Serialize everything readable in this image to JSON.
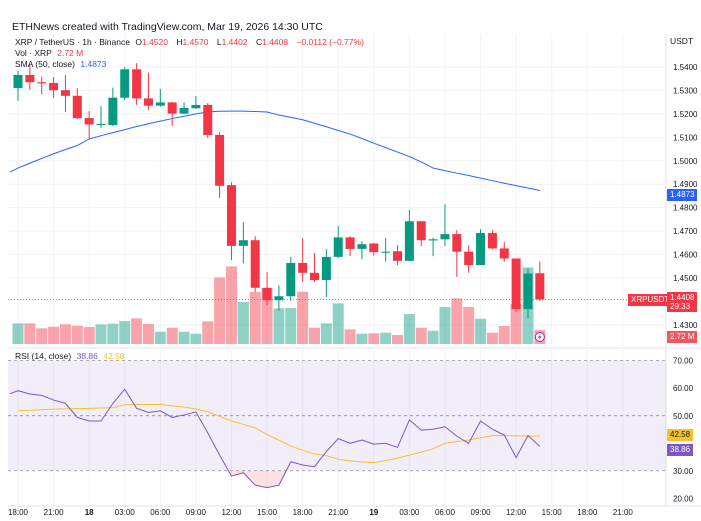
{
  "credit": "ETHNews created with TradingView.com, Mar 19, 2026 14:30 UTC",
  "legend": {
    "symbol": "XRP / TetherUS · 1h · Binance",
    "o_label": "O",
    "o": "1.4520",
    "h_label": "H",
    "h": "1.4570",
    "l_label": "L",
    "l": "1.4402",
    "c_label": "C",
    "c": "1.4408",
    "change": "−0.0112 (−0.77%)",
    "vol_label": "Vol · XRP",
    "vol": "2.72 M",
    "sma_label": "SMA (50, close)",
    "sma": "1.4873",
    "rsi_label": "RSI (14, close)",
    "rsi": "38.86",
    "rsi_ma": "42.58"
  },
  "axis": {
    "currency": "USDT",
    "price_tag": "1.4408",
    "countdown": "29:33",
    "symbol_tag": "XRPUSDT",
    "sma_tag": "1.4873",
    "vol_tag": "2.72 M",
    "rsi_tag": "38.86",
    "rsi_ma_tag": "42.58"
  },
  "colors": {
    "up": "#089981",
    "down": "#f23645",
    "sma": "#2962ff",
    "rsi": "#7e57c2",
    "rsi_ma": "#f7c12b"
  },
  "chart_data": {
    "type": "candlestick",
    "title": "XRP / TetherUS · 1h · Binance",
    "price_ticks": [
      "1.5400",
      "1.5300",
      "1.5200",
      "1.5100",
      "1.5000",
      "1.4900",
      "1.4800",
      "1.4700",
      "1.4600",
      "1.4500",
      "1.4300"
    ],
    "price_range": [
      1.4265,
      1.5535
    ],
    "time_labels": [
      "18:00",
      "21:00",
      "18",
      "03:00",
      "06:00",
      "09:00",
      "12:00",
      "15:00",
      "18:00",
      "21:00",
      "19",
      "03:00",
      "06:00",
      "09:00",
      "12:00",
      "15:00",
      "18:00",
      "21:00"
    ],
    "candles": [
      [
        1.531,
        1.5383,
        1.5255,
        1.5366
      ],
      [
        1.5366,
        1.5409,
        1.5302,
        1.5335
      ],
      [
        1.5335,
        1.5359,
        1.5283,
        1.533
      ],
      [
        1.5332,
        1.5357,
        1.5269,
        1.5301
      ],
      [
        1.5301,
        1.5366,
        1.5208,
        1.5277
      ],
      [
        1.5277,
        1.531,
        1.5178,
        1.5182
      ],
      [
        1.5182,
        1.5212,
        1.5093,
        1.5155
      ],
      [
        1.5155,
        1.5233,
        1.5141,
        1.5157
      ],
      [
        1.5152,
        1.5312,
        1.5147,
        1.5269
      ],
      [
        1.5269,
        1.5399,
        1.5259,
        1.539
      ],
      [
        1.539,
        1.5416,
        1.5238,
        1.5266
      ],
      [
        1.5266,
        1.5376,
        1.5216,
        1.5235
      ],
      [
        1.5235,
        1.5306,
        1.523,
        1.5249
      ],
      [
        1.5249,
        1.5251,
        1.5148,
        1.5201
      ],
      [
        1.5201,
        1.5249,
        1.5199,
        1.5225
      ],
      [
        1.5224,
        1.5276,
        1.5221,
        1.5238
      ],
      [
        1.5238,
        1.5246,
        1.5097,
        1.511
      ],
      [
        1.511,
        1.5122,
        1.4841,
        1.4893
      ],
      [
        1.4896,
        1.4908,
        1.4576,
        1.4637
      ],
      [
        1.4637,
        1.4739,
        1.4562,
        1.4661
      ],
      [
        1.4661,
        1.4678,
        1.4439,
        1.4458
      ],
      [
        1.4458,
        1.4525,
        1.4384,
        1.4405
      ],
      [
        1.4405,
        1.4469,
        1.436,
        1.4422
      ],
      [
        1.4422,
        1.459,
        1.4402,
        1.4564
      ],
      [
        1.4564,
        1.467,
        1.4483,
        1.4522
      ],
      [
        1.4522,
        1.4606,
        1.4483,
        1.4491
      ],
      [
        1.4491,
        1.4623,
        1.4419,
        1.459
      ],
      [
        1.459,
        1.4721,
        1.4585,
        1.4673
      ],
      [
        1.4673,
        1.4678,
        1.4593,
        1.4624
      ],
      [
        1.4624,
        1.4657,
        1.4579,
        1.4644
      ],
      [
        1.4647,
        1.465,
        1.4596,
        1.461
      ],
      [
        1.461,
        1.4671,
        1.4569,
        1.4612
      ],
      [
        1.4614,
        1.464,
        1.4555,
        1.4573
      ],
      [
        1.4573,
        1.479,
        1.4573,
        1.4742
      ],
      [
        1.4742,
        1.4742,
        1.4636,
        1.4661
      ],
      [
        1.466,
        1.4672,
        1.4593,
        1.4665
      ],
      [
        1.4665,
        1.4815,
        1.4636,
        1.4687
      ],
      [
        1.4687,
        1.4704,
        1.4505,
        1.4612
      ],
      [
        1.4612,
        1.464,
        1.4522,
        1.4555
      ],
      [
        1.4555,
        1.4708,
        1.4555,
        1.4692
      ],
      [
        1.4692,
        1.4704,
        1.4622,
        1.4626
      ],
      [
        1.4626,
        1.4655,
        1.4569,
        1.4583
      ],
      [
        1.4583,
        1.4583,
        1.4355,
        1.4367
      ],
      [
        1.4367,
        1.454,
        1.4327,
        1.4519
      ],
      [
        1.452,
        1.457,
        1.4402,
        1.4408
      ]
    ],
    "volume_m": [
      4.02,
      4.02,
      3.05,
      3.36,
      3.83,
      3.56,
      3.3,
      3.83,
      3.94,
      4.47,
      4.99,
      3.89,
      2.39,
      3.17,
      2.39,
      2.0,
      4.41,
      12.96,
      15.1,
      8.16,
      10.1,
      10.88,
      6.94,
      7.0,
      10.16,
      3.17,
      4.02,
      7.91,
      2.86,
      2.0,
      2.08,
      2.2,
      1.75,
      5.83,
      3.17,
      2.58,
      7.19,
      8.88,
      7.19,
      4.92,
      2.2,
      3.5,
      7.77,
      14.9,
      2.72
    ],
    "sma50": [
      1.4969,
      1.499,
      1.501,
      1.503,
      1.5048,
      1.5065,
      1.5093,
      1.5107,
      1.512,
      1.5133,
      1.5146,
      1.5158,
      1.5169,
      1.518,
      1.519,
      1.52,
      1.5208,
      1.5211,
      1.5212,
      1.5212,
      1.521,
      1.5208,
      1.5195,
      1.5185,
      1.5175,
      1.516,
      1.5145,
      1.5129,
      1.5114,
      1.5095,
      1.5075,
      1.5056,
      1.5037,
      1.5018,
      1.4995,
      1.4969,
      1.4958,
      1.4947,
      1.4937,
      1.4926,
      1.4915,
      1.4904,
      1.4894,
      1.4884,
      1.4873
    ],
    "rsi_ticks": [
      "70.00",
      "60.00",
      "50.00",
      "30.00",
      "20.00"
    ],
    "rsi_range": [
      17,
      73
    ],
    "rsi": [
      59.1,
      57.9,
      57.4,
      55.7,
      54.5,
      49.4,
      48.1,
      48.1,
      54.5,
      59.6,
      52.7,
      51.2,
      51.8,
      49.4,
      50.3,
      51.4,
      43.8,
      35.7,
      28.1,
      29.3,
      24.8,
      23.9,
      24.8,
      33.3,
      32.1,
      31.5,
      37.0,
      41.7,
      40.0,
      41.2,
      39.7,
      40.0,
      38.5,
      48.5,
      44.8,
      45.1,
      46.0,
      42.6,
      40.0,
      48.1,
      45.1,
      43.0,
      34.8,
      42.8,
      38.86
    ],
    "rsi_ma": [
      51.8,
      52.0,
      52.2,
      52.4,
      52.5,
      52.6,
      52.7,
      52.8,
      52.9,
      54.0,
      54.1,
      54.1,
      54.1,
      53.6,
      53.2,
      52.4,
      51.5,
      49.8,
      48.1,
      46.9,
      45.6,
      43.2,
      41.1,
      39.0,
      37.5,
      36.1,
      35.5,
      34.2,
      33.6,
      33.2,
      33.0,
      33.7,
      34.6,
      35.7,
      36.8,
      38.0,
      40.0,
      40.6,
      41.2,
      42.0,
      42.8,
      42.8,
      42.7,
      42.6,
      42.58
    ]
  }
}
